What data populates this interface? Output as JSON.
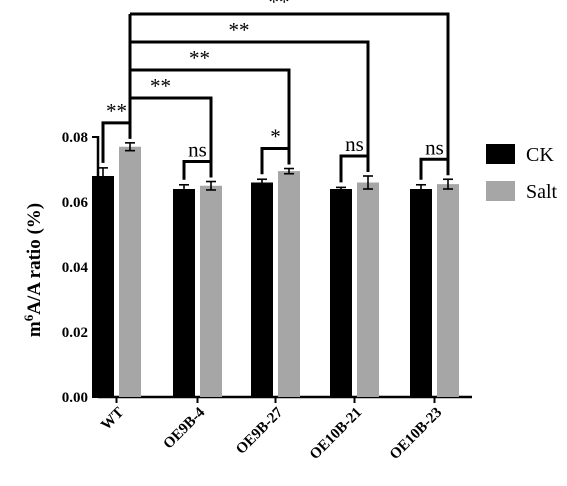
{
  "chart_data": {
    "type": "bar",
    "categories": [
      "WT",
      "OE9B-4",
      "OE9B-27",
      "OE10B-21",
      "OE10B-23"
    ],
    "series": [
      {
        "name": "CK",
        "color": "#000000",
        "values": [
          0.068,
          0.064,
          0.066,
          0.064,
          0.064
        ],
        "errors": [
          0.0025,
          0.0013,
          0.001,
          0.0005,
          0.0013
        ]
      },
      {
        "name": "Salt",
        "color": "#a6a6a6",
        "values": [
          0.077,
          0.065,
          0.0695,
          0.066,
          0.0655
        ],
        "errors": [
          0.0012,
          0.0013,
          0.0008,
          0.002,
          0.0015
        ]
      }
    ],
    "ylabel": "m⁶A/A ratio (%)",
    "ylim": [
      0,
      0.08
    ],
    "yticks": [
      "0.00",
      "0.02",
      "0.04",
      "0.06",
      "0.08"
    ],
    "grid": false,
    "legend_position": "right",
    "significance": {
      "within_group": [
        "**",
        "ns",
        "*",
        "ns",
        "ns"
      ],
      "vs_wt_salt": [
        {
          "target": "OE9B-4",
          "label": "**"
        },
        {
          "target": "OE9B-27",
          "label": "**"
        },
        {
          "target": "OE10B-21",
          "label": "**"
        },
        {
          "target": "OE10B-23",
          "label": "**"
        }
      ]
    }
  }
}
